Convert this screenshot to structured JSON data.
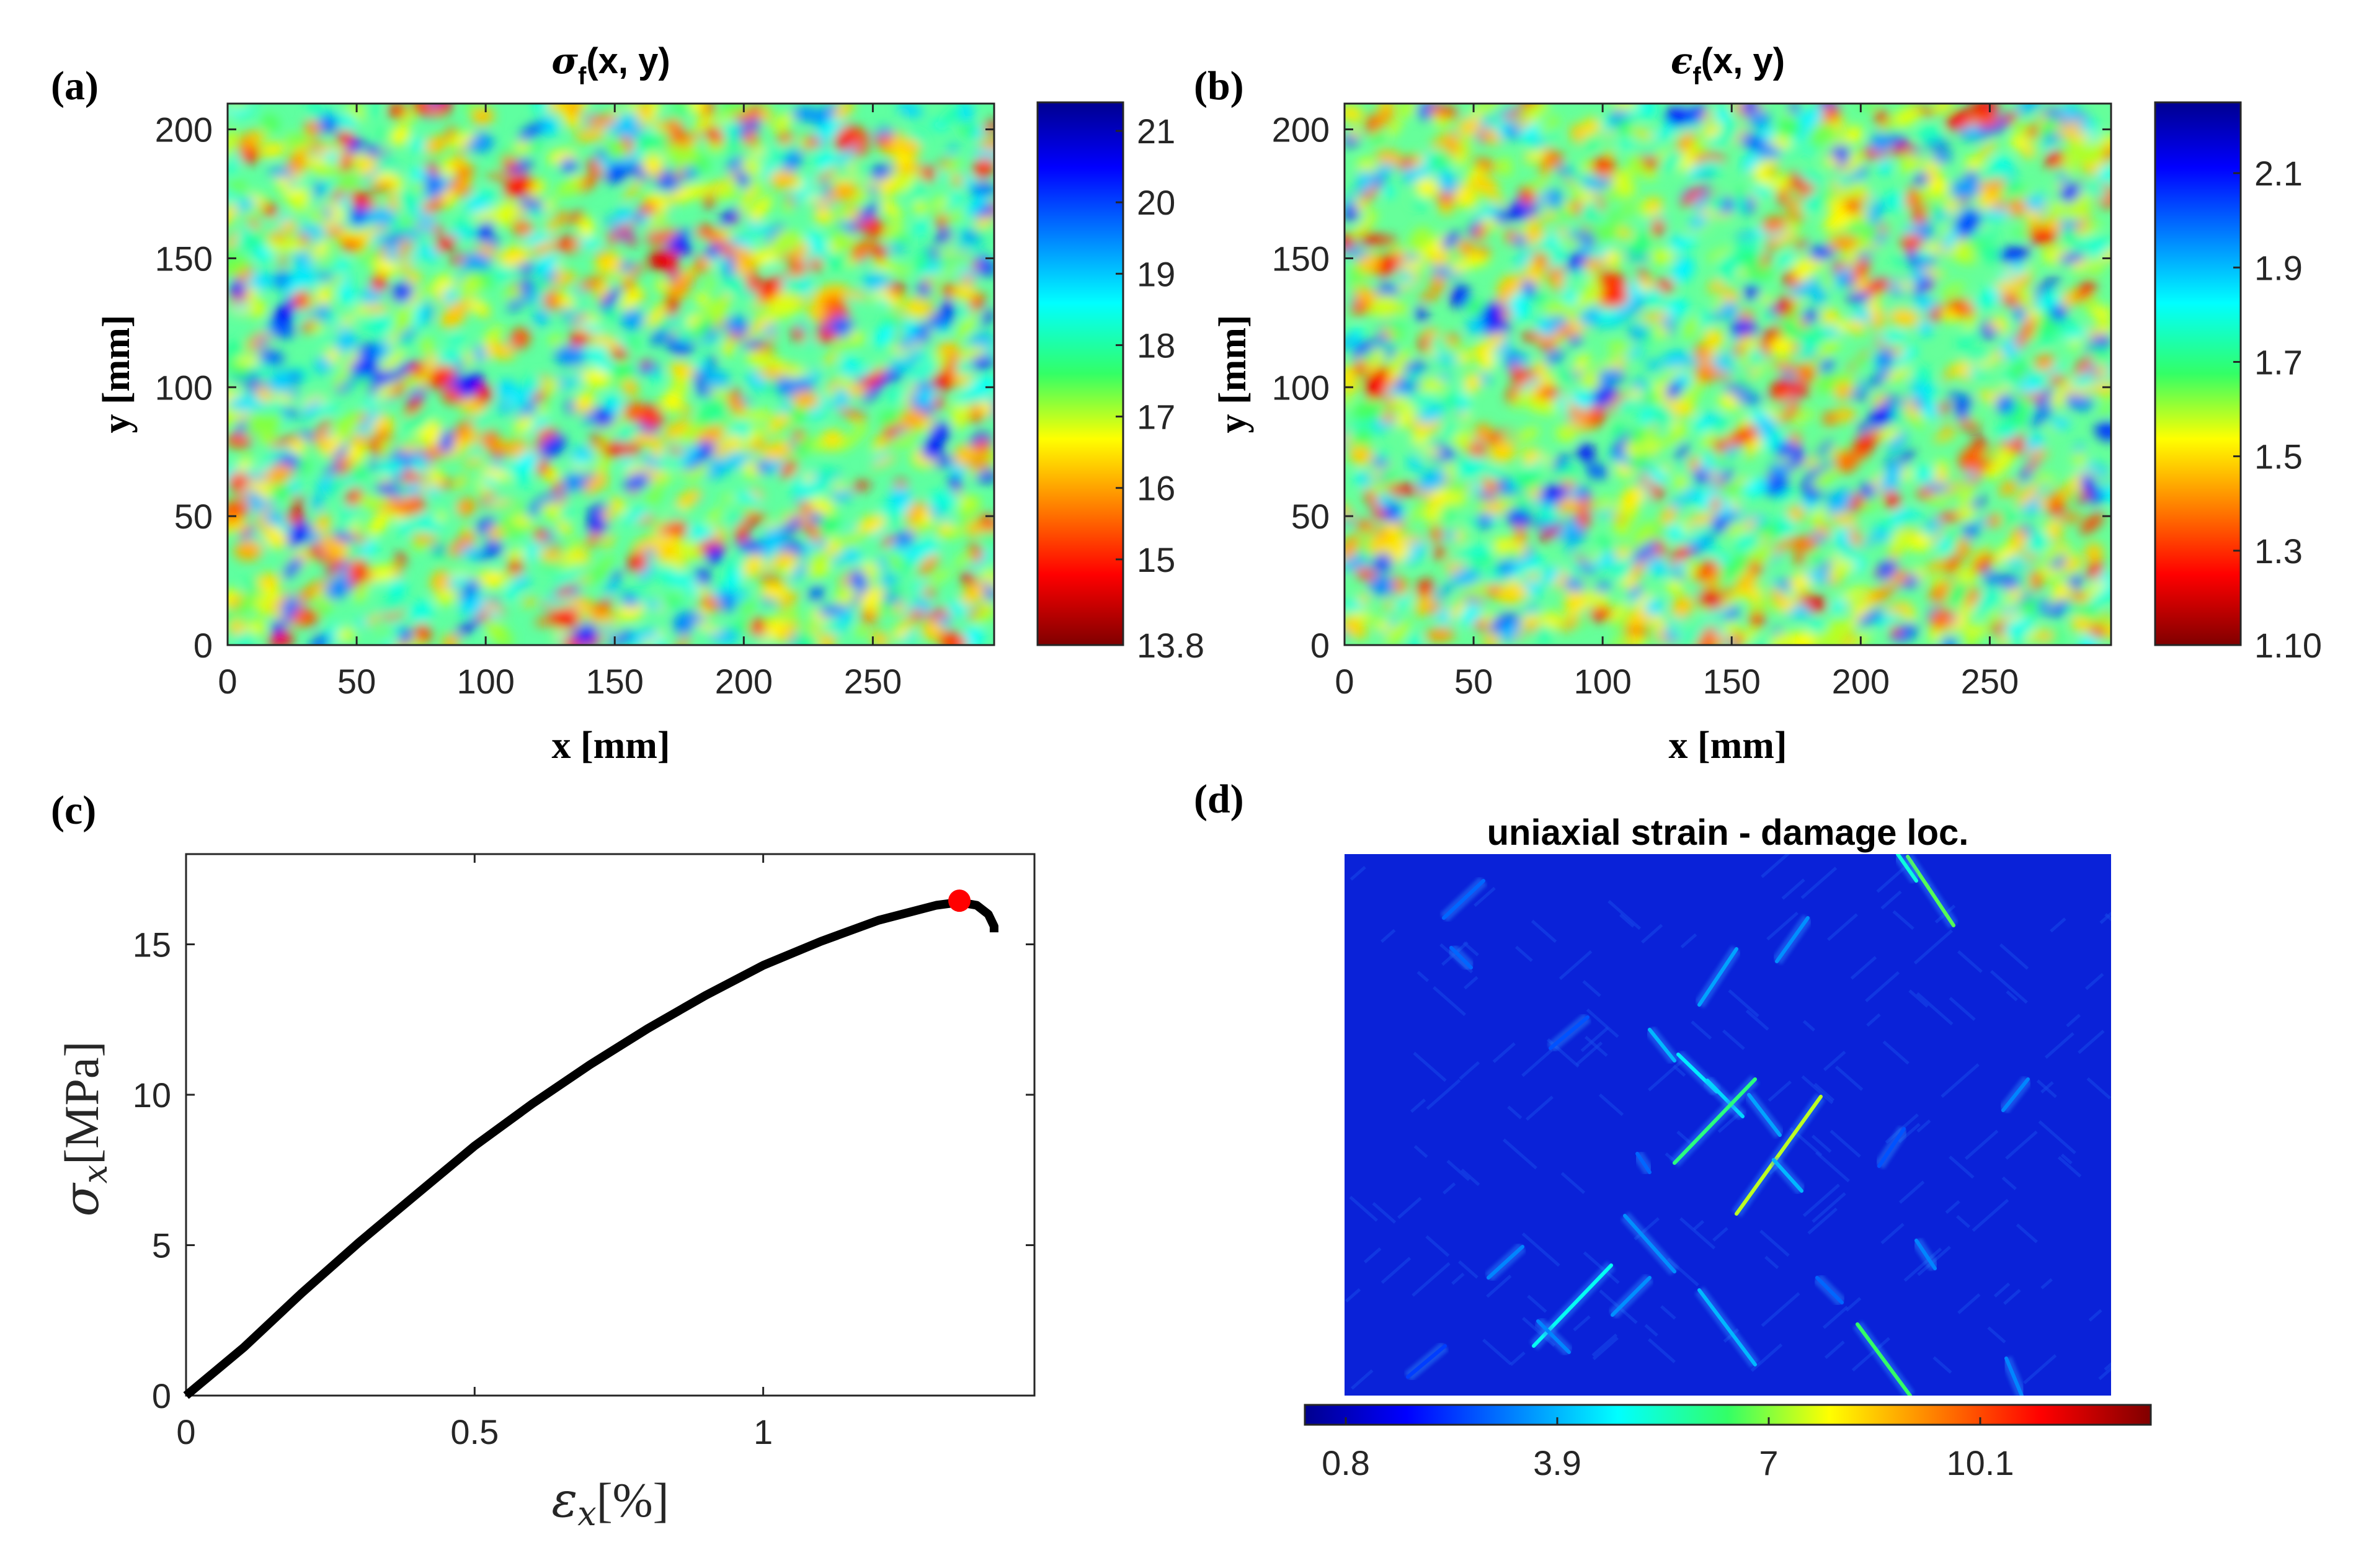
{
  "panels": {
    "a": {
      "label": "(a)",
      "title_symbol": "σ",
      "title_sub": "f",
      "title_rest": "(x, y)",
      "xlabel": "x [mm]",
      "ylabel": "y [mm]",
      "xticks": [
        "0",
        "50",
        "100",
        "150",
        "200",
        "250"
      ],
      "yticks": [
        "0",
        "50",
        "100",
        "150",
        "200"
      ],
      "colorbar_ticks": [
        "21",
        "20",
        "19",
        "18",
        "17",
        "16",
        "15",
        "13.8"
      ],
      "colormap": "jet (reversed)"
    },
    "b": {
      "label": "(b)",
      "title_symbol": "ϵ",
      "title_sub": "f",
      "title_rest": "(x, y)",
      "xlabel": "x [mm]",
      "ylabel": "y [mm]",
      "xticks": [
        "0",
        "50",
        "100",
        "150",
        "200",
        "250"
      ],
      "yticks": [
        "0",
        "50",
        "100",
        "150",
        "200"
      ],
      "colorbar_ticks": [
        "2.1",
        "1.9",
        "1.7",
        "1.5",
        "1.3",
        "1.10"
      ],
      "colormap": "jet (reversed)"
    },
    "c": {
      "label": "(c)",
      "xlabel_symbol": "ε",
      "xlabel_sub": "x",
      "xlabel_unit": "[%]",
      "ylabel_symbol": "σ",
      "ylabel_sub": "x",
      "ylabel_unit": "[MPa]",
      "xticks": [
        "0",
        "0.5",
        "1"
      ],
      "yticks": [
        "0",
        "5",
        "10",
        "15"
      ]
    },
    "d": {
      "label": "(d)",
      "title": "uniaxial strain - damage loc.",
      "colorbar_ticks": [
        "0.8",
        "3.9",
        "7",
        "10.1"
      ],
      "colormap": "jet"
    }
  },
  "colors": {
    "curve": "#000000",
    "peak_marker": "#ff0000",
    "field_background": "#0a22d8"
  },
  "chart_data": [
    {
      "type": "heatmap",
      "title": "σf(x, y)",
      "xlabel": "x [mm]",
      "ylabel": "y [mm]",
      "xlim": [
        0,
        297
      ],
      "ylim": [
        0,
        210
      ],
      "colorbar_range": [
        13.8,
        21.4
      ],
      "colorbar_ticks": [
        21,
        20,
        19,
        18,
        17,
        16,
        15,
        13.8
      ],
      "field": "random spatial field, mean about 17.8"
    },
    {
      "type": "heatmap",
      "title": "ϵf(x, y)",
      "xlabel": "x [mm]",
      "ylabel": "y [mm]",
      "xlim": [
        0,
        297
      ],
      "ylim": [
        0,
        210
      ],
      "colorbar_range": [
        1.1,
        2.25
      ],
      "colorbar_ticks": [
        2.1,
        1.9,
        1.7,
        1.5,
        1.3,
        1.1
      ],
      "field": "random spatial field, mean about 1.65"
    },
    {
      "type": "line",
      "xlabel": "εx [%]",
      "ylabel": "σx [MPa]",
      "xlim": [
        0,
        1.47
      ],
      "ylim": [
        0,
        18
      ],
      "grid": false,
      "x": [
        0,
        0.05,
        0.1,
        0.2,
        0.3,
        0.4,
        0.5,
        0.6,
        0.7,
        0.8,
        0.9,
        1.0,
        1.1,
        1.2,
        1.3,
        1.34,
        1.37,
        1.39,
        1.4,
        1.4
      ],
      "y": [
        0,
        0.8,
        1.6,
        3.4,
        5.1,
        6.7,
        8.3,
        9.7,
        11.0,
        12.2,
        13.3,
        14.3,
        15.1,
        15.8,
        16.3,
        16.4,
        16.3,
        16.0,
        15.6,
        15.4
      ],
      "peak": {
        "x": 1.34,
        "y": 16.45
      }
    },
    {
      "type": "heatmap",
      "title": "uniaxial strain - damage loc.",
      "colorbar_range": [
        0.2,
        12.6
      ],
      "colorbar_ticks": [
        0.8,
        3.9,
        7,
        10.1
      ],
      "field": "damage field, mostly minimum value with diagonal localization bands"
    }
  ]
}
